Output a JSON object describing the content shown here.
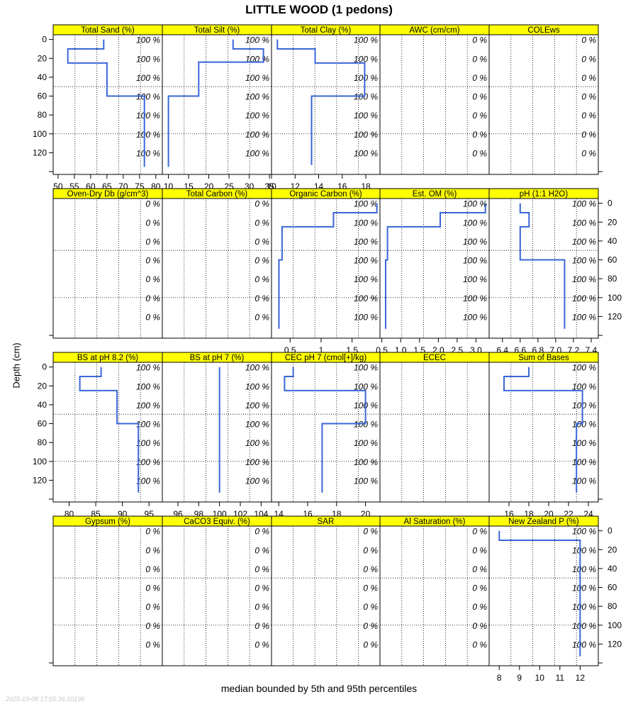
{
  "title": "LITTLE WOOD (1 pedons)",
  "ylabel": "Depth (cm)",
  "xlabel": "median bounded by 5th and 95th percentiles",
  "timestamp": "2025-10-08 17:55:36.10136",
  "colors": {
    "strip": "#ffff00",
    "line": "#3a66d8",
    "grid": "#000000",
    "pct_text": "#000000"
  },
  "chart_data": {
    "type": "line",
    "depth_ticks": [
      0,
      20,
      40,
      60,
      80,
      100,
      120
    ],
    "depth_range": [
      -5,
      143
    ],
    "pct_depths": [
      0,
      20,
      40,
      60,
      80,
      100,
      120
    ],
    "panels": [
      {
        "row": 0,
        "col": 0,
        "label": "Total Sand (%)",
        "xlim": [
          48.5,
          82
        ],
        "xticks": [
          50,
          55,
          60,
          65,
          70,
          75,
          80
        ],
        "pct": "100 %",
        "profile": [
          [
            64,
            0
          ],
          [
            64,
            10
          ],
          [
            53,
            10
          ],
          [
            53,
            25
          ],
          [
            65,
            25
          ],
          [
            65,
            60
          ],
          [
            76.5,
            60
          ],
          [
            76.5,
            135
          ]
        ]
      },
      {
        "row": 0,
        "col": 1,
        "label": "Total Silt (%)",
        "xlim": [
          8.5,
          35.5
        ],
        "xticks": [
          10,
          15,
          20,
          25,
          30,
          35
        ],
        "pct": "100 %",
        "profile": [
          [
            26,
            0
          ],
          [
            26,
            10
          ],
          [
            33.5,
            10
          ],
          [
            33.5,
            24
          ],
          [
            17.5,
            24
          ],
          [
            17.5,
            60
          ],
          [
            10,
            60
          ],
          [
            10,
            135
          ]
        ]
      },
      {
        "row": 0,
        "col": 2,
        "label": "Total Clay (%)",
        "xlim": [
          10,
          19.2
        ],
        "xticks": [
          10,
          12,
          14,
          16,
          18
        ],
        "pct": "100 %",
        "profile": [
          [
            10.5,
            0
          ],
          [
            10.5,
            10
          ],
          [
            13.7,
            10
          ],
          [
            13.7,
            25
          ],
          [
            17.9,
            25
          ],
          [
            17.9,
            60
          ],
          [
            13.4,
            60
          ],
          [
            13.4,
            133
          ]
        ]
      },
      {
        "row": 0,
        "col": 3,
        "label": "AWC (cm/cm)",
        "xlim": [
          0,
          1
        ],
        "xticks": [],
        "pct": "0 %",
        "profile": []
      },
      {
        "row": 0,
        "col": 4,
        "label": "COLEws",
        "xlim": [
          0,
          1
        ],
        "xticks": [],
        "pct": "0 %",
        "profile": []
      },
      {
        "row": 1,
        "col": 0,
        "label": "Oven-Dry Db (g/cm^3)",
        "xlim": [
          0,
          1
        ],
        "xticks": [],
        "pct": "0 %",
        "profile": []
      },
      {
        "row": 1,
        "col": 1,
        "label": "Total Carbon (%)",
        "xlim": [
          0,
          1
        ],
        "xticks": [],
        "pct": "0 %",
        "profile": []
      },
      {
        "row": 1,
        "col": 2,
        "label": "Organic Carbon (%)",
        "xlim": [
          0.2,
          1.95
        ],
        "xticks": [
          0.5,
          1,
          1.5
        ],
        "xtick_labels": [
          "0.5",
          "1",
          "1.5"
        ],
        "pct": "100 %",
        "profile": [
          [
            1.9,
            0
          ],
          [
            1.9,
            10
          ],
          [
            1.2,
            10
          ],
          [
            1.2,
            25
          ],
          [
            0.37,
            25
          ],
          [
            0.37,
            60
          ],
          [
            0.32,
            60
          ],
          [
            0.32,
            133
          ]
        ]
      },
      {
        "row": 1,
        "col": 3,
        "label": "Est. OM (%)",
        "xlim": [
          0.45,
          3.35
        ],
        "xticks": [
          0.5,
          1,
          1.5,
          2,
          2.5,
          3
        ],
        "xtick_labels": [
          "0.5",
          "1.0",
          "1.5",
          "2.0",
          "2.5",
          "3.0"
        ],
        "pct": "100 %",
        "profile": [
          [
            3.25,
            0
          ],
          [
            3.25,
            10
          ],
          [
            2.05,
            10
          ],
          [
            2.05,
            25
          ],
          [
            0.65,
            25
          ],
          [
            0.65,
            60
          ],
          [
            0.6,
            60
          ],
          [
            0.6,
            133
          ]
        ]
      },
      {
        "row": 1,
        "col": 4,
        "label": "pH (1:1 H2O)",
        "xlim": [
          6.25,
          7.48
        ],
        "xticks": [
          6.4,
          6.6,
          6.8,
          7,
          7.2,
          7.4
        ],
        "xtick_labels": [
          "6.4",
          "6.6",
          "6.8",
          "7.0",
          "7.2",
          "7.4"
        ],
        "pct": "100 %",
        "profile": [
          [
            6.6,
            0
          ],
          [
            6.6,
            10
          ],
          [
            6.7,
            10
          ],
          [
            6.7,
            25
          ],
          [
            6.6,
            25
          ],
          [
            6.6,
            60
          ],
          [
            7.1,
            60
          ],
          [
            7.1,
            133
          ]
        ]
      },
      {
        "row": 2,
        "col": 0,
        "label": "BS at pH 8.2 (%)",
        "xlim": [
          77,
          97.5
        ],
        "xticks": [
          80,
          85,
          90,
          95
        ],
        "pct": "100 %",
        "profile": [
          [
            86,
            0
          ],
          [
            86,
            10
          ],
          [
            82,
            10
          ],
          [
            82,
            25
          ],
          [
            89,
            25
          ],
          [
            89,
            60
          ],
          [
            93,
            60
          ],
          [
            93,
            133
          ]
        ]
      },
      {
        "row": 2,
        "col": 1,
        "label": "BS at pH 7 (%)",
        "xlim": [
          94.5,
          105
        ],
        "xticks": [
          96,
          98,
          100,
          102,
          104
        ],
        "pct": "100 %",
        "profile": [
          [
            100,
            0
          ],
          [
            100,
            133
          ]
        ]
      },
      {
        "row": 2,
        "col": 2,
        "label": "CEC pH 7 (cmol[+]/kg)",
        "xlim": [
          13.5,
          21
        ],
        "xticks": [
          14,
          16,
          18,
          20
        ],
        "pct": "100 %",
        "profile": [
          [
            15,
            0
          ],
          [
            15,
            10
          ],
          [
            14.4,
            10
          ],
          [
            14.4,
            25
          ],
          [
            20,
            25
          ],
          [
            20,
            60
          ],
          [
            17,
            60
          ],
          [
            17,
            133
          ]
        ]
      },
      {
        "row": 2,
        "col": 3,
        "label": "ECEC",
        "xlim": [
          0,
          1
        ],
        "xticks": [],
        "pct": "",
        "profile": []
      },
      {
        "row": 2,
        "col": 4,
        "label": "Sum of Bases",
        "xlim": [
          14,
          25
        ],
        "xticks": [
          16,
          18,
          20,
          22,
          24
        ],
        "pct": "100 %",
        "profile": [
          [
            18,
            0
          ],
          [
            18,
            10
          ],
          [
            15.5,
            10
          ],
          [
            15.5,
            25
          ],
          [
            23.4,
            25
          ],
          [
            23.4,
            60
          ],
          [
            22.8,
            60
          ],
          [
            22.8,
            133
          ]
        ]
      },
      {
        "row": 3,
        "col": 0,
        "label": "Gypsum (%)",
        "xlim": [
          0,
          1
        ],
        "xticks": [],
        "pct": "0 %",
        "profile": []
      },
      {
        "row": 3,
        "col": 1,
        "label": "CaCO3 Equiv. (%)",
        "xlim": [
          0,
          1
        ],
        "xticks": [],
        "pct": "0 %",
        "profile": []
      },
      {
        "row": 3,
        "col": 2,
        "label": "SAR",
        "xlim": [
          0,
          1
        ],
        "xticks": [],
        "pct": "0 %",
        "profile": []
      },
      {
        "row": 3,
        "col": 3,
        "label": "Al Saturation (%)",
        "xlim": [
          0,
          1
        ],
        "xticks": [],
        "pct": "0 %",
        "profile": []
      },
      {
        "row": 3,
        "col": 4,
        "label": "New Zealand P (%)",
        "xlim": [
          7.5,
          12.9
        ],
        "xticks": [
          8,
          9,
          10,
          11,
          12
        ],
        "pct": "100 %",
        "profile": [
          [
            8,
            0
          ],
          [
            8,
            10
          ],
          [
            12,
            10
          ],
          [
            12,
            133
          ]
        ]
      }
    ]
  }
}
